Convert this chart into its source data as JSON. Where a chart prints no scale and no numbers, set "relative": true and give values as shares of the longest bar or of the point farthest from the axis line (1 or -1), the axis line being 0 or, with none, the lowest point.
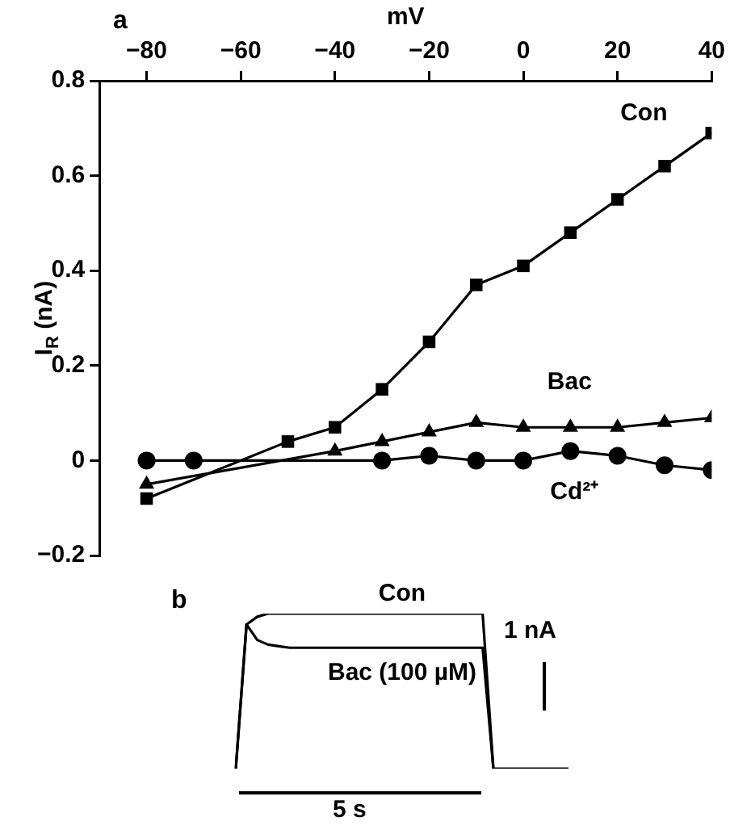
{
  "chart_data": [
    {
      "type": "line",
      "xlabel": "mV",
      "ylabel": "I$_{R}$ (nA)",
      "annotations": [
        "a"
      ],
      "xlim": [
        -90,
        40
      ],
      "xticks": [
        -80,
        -60,
        -40,
        -20,
        0,
        20,
        40
      ],
      "ylim": [
        -0.2,
        0.8
      ],
      "yticks": [
        -0.2,
        0,
        0.2,
        0.4,
        0.6,
        0.8
      ],
      "grid": false,
      "series": [
        {
          "name": "Con",
          "color": "#000000",
          "marker": "square",
          "x": [
            -80,
            -50,
            -40,
            -30,
            -20,
            -10,
            0,
            10,
            20,
            30,
            40
          ],
          "values": [
            -0.08,
            0.04,
            0.07,
            0.15,
            0.25,
            0.37,
            0.41,
            0.48,
            0.55,
            0.62,
            0.69
          ]
        },
        {
          "name": "Bac",
          "color": "#000000",
          "marker": "triangle",
          "x": [
            -80,
            -40,
            -30,
            -20,
            -10,
            0,
            10,
            20,
            30,
            40
          ],
          "values": [
            -0.05,
            0.02,
            0.04,
            0.06,
            0.08,
            0.07,
            0.07,
            0.07,
            0.08,
            0.09
          ]
        },
        {
          "name": "Cd²⁺",
          "color": "#000000",
          "marker": "circle",
          "x": [
            -80,
            -70,
            -30,
            -20,
            -10,
            0,
            10,
            20,
            30,
            40
          ],
          "values": [
            0,
            0,
            0,
            0.01,
            0,
            0,
            0.02,
            0.01,
            -0.01,
            -0.02
          ]
        }
      ]
    },
    {
      "type": "line",
      "relative": true,
      "tick_labels": false,
      "marker": "none",
      "annotations": [
        "b",
        "1 nA",
        "5 s"
      ],
      "categories": [
        null,
        null,
        null,
        null,
        null,
        null,
        null,
        null,
        null,
        null,
        null,
        null,
        null,
        null,
        null,
        null,
        null,
        null,
        null,
        null,
        null,
        null,
        null,
        null,
        null,
        null,
        null,
        null,
        null,
        null,
        null,
        null
      ],
      "series": [
        {
          "name": "Con",
          "color": "#000000",
          "values": [
            0,
            0.93,
            0.98,
            1,
            1,
            1,
            1,
            1,
            1,
            1,
            1,
            1,
            1,
            1,
            1,
            1,
            1,
            1,
            1,
            1,
            1,
            1,
            1,
            1,
            0,
            0,
            0,
            0,
            0,
            0,
            0,
            0
          ]
        },
        {
          "name": "Bac (100 µM)",
          "color": "#000000",
          "values": [
            0,
            0.93,
            0.83,
            0.8,
            0.79,
            0.78,
            0.78,
            0.78,
            0.78,
            0.78,
            0.78,
            0.78,
            0.78,
            0.78,
            0.78,
            0.78,
            0.78,
            0.78,
            0.78,
            0.78,
            0.78,
            0.78,
            0.78,
            0.78,
            0,
            null,
            null,
            null,
            null,
            null,
            null,
            null
          ]
        }
      ]
    }
  ]
}
